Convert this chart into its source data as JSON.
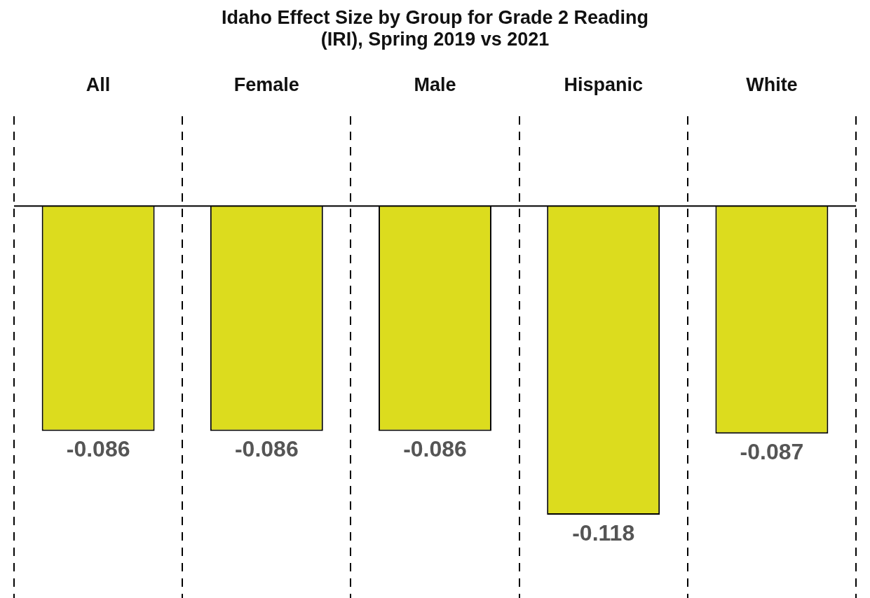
{
  "chart_data": {
    "type": "bar",
    "title": "Idaho Effect Size by Group for Grade 2 Reading (IRI), Spring 2019 vs 2021",
    "categories": [
      "All",
      "Female",
      "Male",
      "Hispanic",
      "White"
    ],
    "values": [
      -0.086,
      -0.086,
      -0.086,
      -0.118,
      -0.087
    ],
    "color": "#dcdc1e",
    "data_labels": true,
    "grid": "x",
    "legend": false
  }
}
